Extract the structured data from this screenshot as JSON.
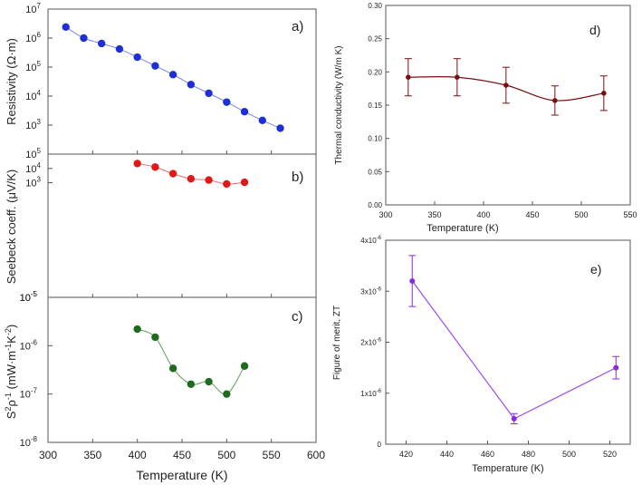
{
  "chart_data": [
    {
      "id": "a",
      "type": "line",
      "panel_label": "a)",
      "ylabel": "Resistivity (Ω·m)",
      "yscale": "log",
      "ylim": [
        100,
        10000000
      ],
      "yticks": [
        {
          "v": 1000,
          "exp": "3"
        },
        {
          "v": 10000,
          "exp": "4"
        },
        {
          "v": 100000,
          "exp": "5"
        },
        {
          "v": 1000000,
          "exp": "6"
        },
        {
          "v": 10000000,
          "exp": "7"
        }
      ],
      "xlim": [
        300,
        600
      ],
      "color": "#1f2fd6",
      "line_color": "#7b86e0",
      "x": [
        320,
        340,
        360,
        380,
        400,
        420,
        440,
        460,
        480,
        500,
        520,
        540,
        560
      ],
      "y": [
        2400000,
        1000000,
        650000,
        420000,
        220000,
        110000,
        55000,
        25000,
        12500,
        6200,
        2900,
        1450,
        780
      ]
    },
    {
      "id": "b",
      "type": "line",
      "panel_label": "b)",
      "ylabel": "Seebeck coeff. (μV/K)",
      "yscale": "log",
      "ylim": [
        1e-05,
        100000
      ],
      "yticks": [
        {
          "v": 1e-05,
          "exp": "-5"
        },
        {
          "v": 1000,
          "exp": "3"
        },
        {
          "v": 10000,
          "exp": "4"
        },
        {
          "v": 100000,
          "exp": "5"
        }
      ],
      "xlim": [
        300,
        600
      ],
      "color": "#e01818",
      "line_color": "#e07070",
      "x": [
        400,
        420,
        440,
        460,
        480,
        500,
        520
      ],
      "y": [
        22000,
        12500,
        4300,
        1900,
        1550,
        820,
        1080
      ]
    },
    {
      "id": "c",
      "type": "line",
      "panel_label": "c)",
      "ylabel_base": "S",
      "ylabel_mid": "ρ",
      "ylabel_unit": "(mW·m",
      "ylabel_unit2": "K",
      "ylabel_sup1": "2",
      "ylabel_sup2": "-1",
      "ylabel_sup3": "-1",
      "ylabel_sup4": "-2",
      "ylabel_close": ")",
      "yscale": "log",
      "ylim": [
        1e-08,
        1e-05
      ],
      "yticks": [
        {
          "v": 1e-08,
          "exp": "-8"
        },
        {
          "v": 1e-07,
          "exp": "-7"
        },
        {
          "v": 1e-06,
          "exp": "-6"
        },
        {
          "v": 1e-05,
          "exp": "-5"
        }
      ],
      "xlim": [
        300,
        600
      ],
      "xticks": [
        300,
        350,
        400,
        450,
        500,
        550,
        600
      ],
      "xlabel": "Temperature (K)",
      "color": "#1e6b1e",
      "line_color": "#5a9a5a",
      "x": [
        400,
        420,
        440,
        460,
        480,
        500,
        520
      ],
      "y": [
        2.2e-06,
        1.5e-06,
        3.4e-07,
        1.6e-07,
        1.8e-07,
        1e-07,
        3.8e-07
      ]
    },
    {
      "id": "d",
      "type": "line",
      "panel_label": "d)",
      "ylabel": "Thermal conductivity (W/m K)",
      "xlabel": "Temperature (K)",
      "yscale": "linear",
      "ylim": [
        0,
        0.3
      ],
      "yticks": [
        "0.00",
        "0.05",
        "0.10",
        "0.15",
        "0.20",
        "0.25",
        "0.30"
      ],
      "xlim": [
        300,
        550
      ],
      "xticks": [
        300,
        350,
        400,
        450,
        500,
        550
      ],
      "color": "#7a0f0f",
      "x": [
        323,
        373,
        423,
        473,
        523
      ],
      "y": [
        0.192,
        0.192,
        0.18,
        0.157,
        0.168
      ],
      "err": [
        0.028,
        0.028,
        0.027,
        0.022,
        0.026
      ]
    },
    {
      "id": "e",
      "type": "line",
      "panel_label": "e)",
      "ylabel": "Figure of merit, ZT",
      "xlabel": "Temperature (K)",
      "yscale": "linear",
      "ylim": [
        0,
        4e-06
      ],
      "yticks": [
        {
          "v": 0,
          "label": "0"
        },
        {
          "v": 1e-06,
          "label": "1x10",
          "exp": "-6"
        },
        {
          "v": 2e-06,
          "label": "2x10",
          "exp": "-6"
        },
        {
          "v": 3e-06,
          "label": "3x10",
          "exp": "-6"
        },
        {
          "v": 4e-06,
          "label": "4x10",
          "exp": "-6"
        }
      ],
      "xlim": [
        410,
        530
      ],
      "xticks": [
        420,
        440,
        460,
        480,
        500,
        520
      ],
      "color": "#8a2be2",
      "line_color": "#9a4cf0",
      "x": [
        423,
        473,
        523
      ],
      "y": [
        3.2e-06,
        5e-07,
        1.5e-06
      ],
      "err": [
        5e-07,
        1e-07,
        2.2e-07
      ]
    }
  ]
}
